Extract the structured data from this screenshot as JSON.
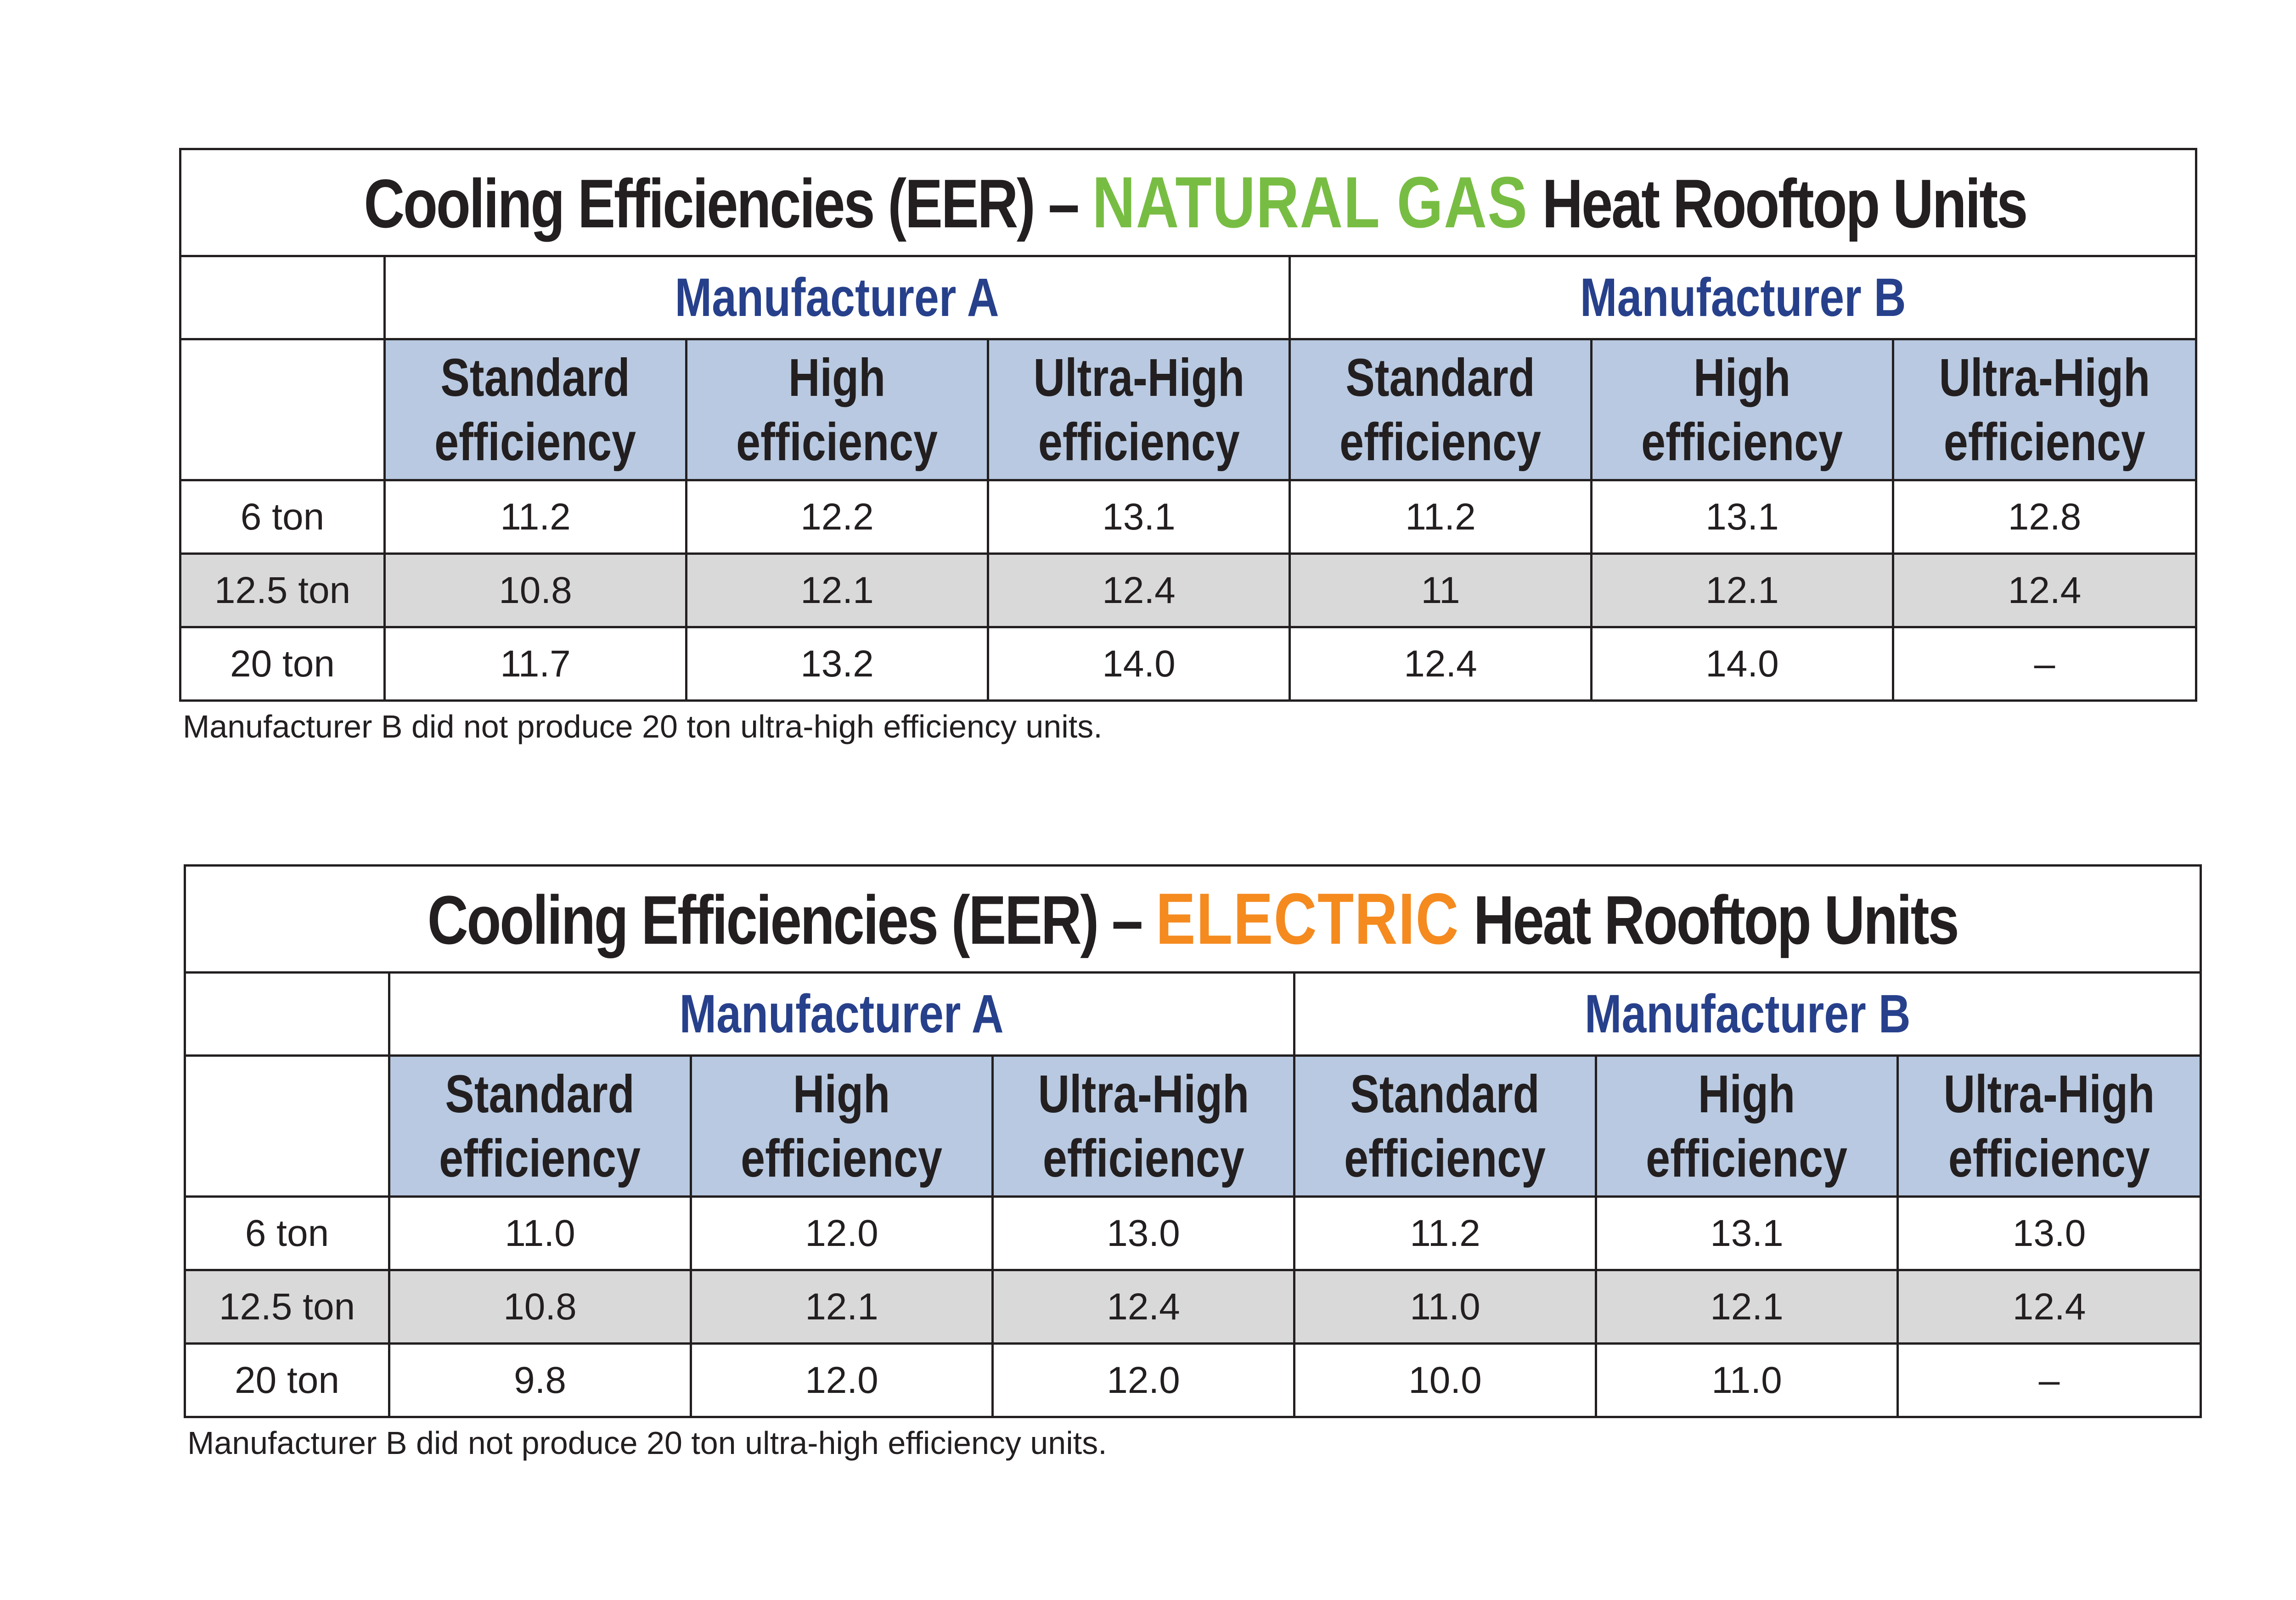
{
  "tables": [
    {
      "title_prefix": "Cooling Efficiencies (EER) –",
      "title_highlight": "NATURAL GAS",
      "title_suffix": "Heat Rooftop Units",
      "highlight_color": "#78bd43",
      "manufacturers": [
        "Manufacturer A",
        "Manufacturer B"
      ],
      "columns": [
        {
          "line1": "Standard",
          "line2": "efficiency"
        },
        {
          "line1": "High",
          "line2": "efficiency"
        },
        {
          "line1": "Ultra-High",
          "line2": "efficiency"
        },
        {
          "line1": "Standard",
          "line2": "efficiency"
        },
        {
          "line1": "High",
          "line2": "efficiency"
        },
        {
          "line1": "Ultra-High",
          "line2": "efficiency"
        }
      ],
      "rows": [
        {
          "label": "6 ton",
          "values": [
            "11.2",
            "12.2",
            "13.1",
            "11.2",
            "13.1",
            "12.8"
          ]
        },
        {
          "label": "12.5 ton",
          "values": [
            "10.8",
            "12.1",
            "12.4",
            "11",
            "12.1",
            "12.4"
          ]
        },
        {
          "label": "20 ton",
          "values": [
            "11.7",
            "13.2",
            "14.0",
            "12.4",
            "14.0",
            "–"
          ]
        }
      ],
      "note": "Manufacturer B did not produce 20 ton ultra-high efficiency units."
    },
    {
      "title_prefix": "Cooling Efficiencies (EER) –",
      "title_highlight": "ELECTRIC",
      "title_suffix": "Heat Rooftop Units",
      "highlight_color": "#f58a1f",
      "manufacturers": [
        "Manufacturer A",
        "Manufacturer B"
      ],
      "columns": [
        {
          "line1": "Standard",
          "line2": "efficiency"
        },
        {
          "line1": "High",
          "line2": "efficiency"
        },
        {
          "line1": "Ultra-High",
          "line2": "efficiency"
        },
        {
          "line1": "Standard",
          "line2": "efficiency"
        },
        {
          "line1": "High",
          "line2": "efficiency"
        },
        {
          "line1": "Ultra-High",
          "line2": "efficiency"
        }
      ],
      "rows": [
        {
          "label": "6 ton",
          "values": [
            "11.0",
            "12.0",
            "13.0",
            "11.2",
            "13.1",
            "13.0"
          ]
        },
        {
          "label": "12.5 ton",
          "values": [
            "10.8",
            "12.1",
            "12.4",
            "11.0",
            "12.1",
            "12.4"
          ]
        },
        {
          "label": "20 ton",
          "values": [
            "9.8",
            "12.0",
            "12.0",
            "10.0",
            "11.0",
            "–"
          ]
        }
      ],
      "note": "Manufacturer B did not produce 20 ton ultra-high efficiency units."
    }
  ],
  "colors": {
    "manufacturer_text": "#27408b",
    "header_fill": "#b8c9e1",
    "shaded_row": "#d9d9d9"
  }
}
